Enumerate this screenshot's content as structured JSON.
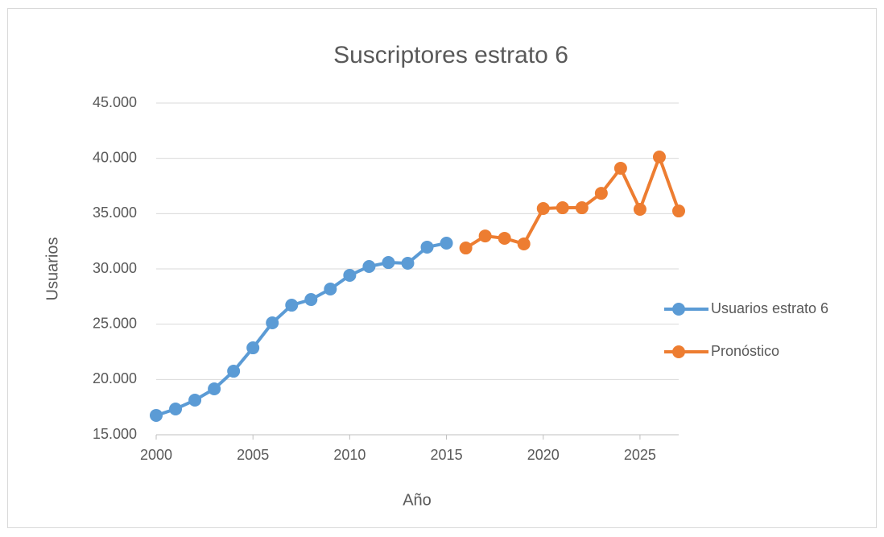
{
  "chart_data": {
    "type": "line",
    "title": "Suscriptores estrato 6",
    "xlabel": "Año",
    "ylabel": "Usuarios",
    "xlim": [
      2000,
      2027
    ],
    "xticks": [
      2000,
      2005,
      2010,
      2015,
      2020,
      2025
    ],
    "ylim": [
      15000,
      45000
    ],
    "yticks": [
      {
        "value": 15000,
        "label": "15.000"
      },
      {
        "value": 20000,
        "label": "20.000"
      },
      {
        "value": 25000,
        "label": "25.000"
      },
      {
        "value": 30000,
        "label": "30.000"
      },
      {
        "value": 35000,
        "label": "35.000"
      },
      {
        "value": 40000,
        "label": "40.000"
      },
      {
        "value": 45000,
        "label": "45.000"
      }
    ],
    "grid": true,
    "legend": "right",
    "series": [
      {
        "name": "Usuarios estrato 6",
        "color": "#5b9bd5",
        "x": [
          2000,
          2001,
          2002,
          2003,
          2004,
          2005,
          2006,
          2007,
          2008,
          2009,
          2010,
          2011,
          2012,
          2013,
          2014,
          2015
        ],
        "values": [
          16750,
          17330,
          18130,
          19150,
          20750,
          22860,
          25120,
          26720,
          27230,
          28180,
          29420,
          30220,
          30580,
          30510,
          31970,
          32330
        ]
      },
      {
        "name": "Pronóstico",
        "color": "#ed7d31",
        "x": [
          2016,
          2017,
          2018,
          2019,
          2020,
          2021,
          2022,
          2023,
          2024,
          2025,
          2026,
          2027
        ],
        "values": [
          31890,
          32980,
          32770,
          32260,
          35460,
          35530,
          35530,
          36840,
          39100,
          35390,
          40120,
          35240
        ]
      }
    ]
  }
}
